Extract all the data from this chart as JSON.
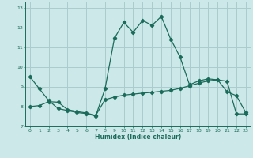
{
  "xlabel": "Humidex (Indice chaleur)",
  "background_color": "#cce8e8",
  "grid_color": "#aacccc",
  "line_color": "#1a6b5a",
  "xlim": [
    -0.5,
    23.5
  ],
  "ylim": [
    7,
    13.3
  ],
  "xticks": [
    0,
    1,
    2,
    3,
    4,
    5,
    6,
    7,
    8,
    9,
    10,
    11,
    12,
    13,
    14,
    15,
    16,
    17,
    18,
    19,
    20,
    21,
    22,
    23
  ],
  "yticks": [
    7,
    8,
    9,
    10,
    11,
    12,
    13
  ],
  "line1_x": [
    0,
    1,
    2,
    3,
    4,
    5,
    6,
    7,
    8,
    9,
    10,
    11,
    12,
    13,
    14,
    15,
    16,
    17,
    18,
    19,
    20,
    21,
    22,
    23
  ],
  "line1_y": [
    9.5,
    8.9,
    8.3,
    7.9,
    7.8,
    7.7,
    7.65,
    7.52,
    8.9,
    11.45,
    12.25,
    11.75,
    12.35,
    12.1,
    12.55,
    11.4,
    10.5,
    9.1,
    9.3,
    9.4,
    9.35,
    8.75,
    8.55,
    7.7
  ],
  "line2_x": [
    0,
    1,
    2,
    3,
    4,
    5,
    6,
    7,
    8,
    9,
    10,
    11,
    12,
    13,
    14,
    15,
    16,
    17,
    18,
    19,
    20,
    21,
    22,
    23
  ],
  "line2_y": [
    8.0,
    8.05,
    8.25,
    8.22,
    7.85,
    7.75,
    7.68,
    7.55,
    8.35,
    8.48,
    8.58,
    8.63,
    8.68,
    8.72,
    8.77,
    8.82,
    8.92,
    9.05,
    9.18,
    9.3,
    9.35,
    9.28,
    7.63,
    7.63
  ]
}
